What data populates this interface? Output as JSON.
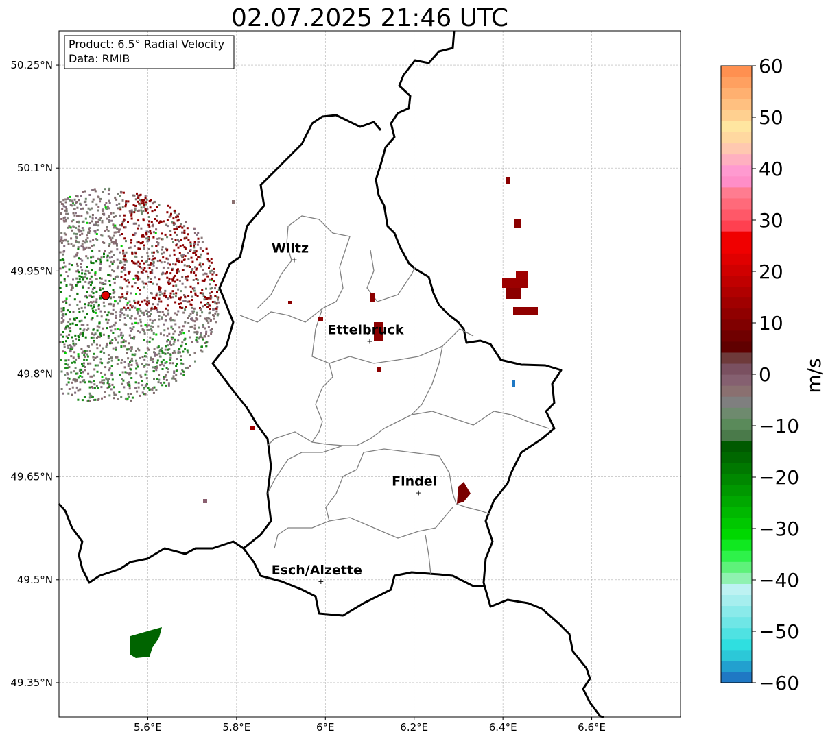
{
  "title": "02.07.2025 21:46 UTC",
  "info_box": {
    "product": "Product: 6.5° Radial Velocity",
    "data": "Data: RMIB"
  },
  "axes": {
    "lon_range": [
      5.4,
      6.8
    ],
    "lat_range": [
      49.3,
      50.3
    ],
    "x_ticks": [
      {
        "value": 5.6,
        "label": "5.6°E"
      },
      {
        "value": 5.8,
        "label": "5.8°E"
      },
      {
        "value": 6.0,
        "label": "6°E"
      },
      {
        "value": 6.2,
        "label": "6.2°E"
      },
      {
        "value": 6.4,
        "label": "6.4°E"
      },
      {
        "value": 6.6,
        "label": "6.6°E"
      }
    ],
    "y_ticks": [
      {
        "value": 50.25,
        "label": "50.25°N"
      },
      {
        "value": 50.1,
        "label": "50.1°N"
      },
      {
        "value": 49.95,
        "label": "49.95°N"
      },
      {
        "value": 49.8,
        "label": "49.8°N"
      },
      {
        "value": 49.65,
        "label": "49.65°N"
      },
      {
        "value": 49.5,
        "label": "49.5°N"
      },
      {
        "value": 49.35,
        "label": "49.35°N"
      }
    ],
    "grid": true
  },
  "cities": [
    {
      "name": "Wiltz",
      "lon": 5.93,
      "lat": 49.967
    },
    {
      "name": "Ettelbruck",
      "lon": 6.1,
      "lat": 49.848
    },
    {
      "name": "Findel",
      "lon": 6.21,
      "lat": 49.627
    },
    {
      "name": "Esch/Alzette",
      "lon": 5.99,
      "lat": 49.498
    }
  ],
  "radar_site": {
    "lon": 5.505,
    "lat": 49.915
  },
  "colorbar": {
    "label": "m/s",
    "min": -60,
    "max": 60,
    "ticks": [
      {
        "value": 60,
        "label": "60"
      },
      {
        "value": 50,
        "label": "50"
      },
      {
        "value": 40,
        "label": "40"
      },
      {
        "value": 30,
        "label": "30"
      },
      {
        "value": 20,
        "label": "20"
      },
      {
        "value": 10,
        "label": "10"
      },
      {
        "value": 0,
        "label": "0"
      },
      {
        "value": -10,
        "label": "−10"
      },
      {
        "value": -20,
        "label": "−20"
      },
      {
        "value": -30,
        "label": "−30"
      },
      {
        "value": -40,
        "label": "−40"
      },
      {
        "value": -50,
        "label": "−50"
      },
      {
        "value": -60,
        "label": "−60"
      }
    ],
    "colors": [
      "#1f78c4",
      "#22a0cf",
      "#2cc8d8",
      "#2fdfe0",
      "#4fe2e2",
      "#6fe6e6",
      "#8aeaea",
      "#a6eeee",
      "#bdf2f2",
      "#8ff2b0",
      "#5ef27a",
      "#2ef24a",
      "#10e820",
      "#00d800",
      "#00c800",
      "#00b800",
      "#00a800",
      "#009800",
      "#008800",
      "#007800",
      "#006800",
      "#005a00",
      "#4a7a4a",
      "#5a8a5a",
      "#6e8a6e",
      "#7f7f7f",
      "#8a7070",
      "#856070",
      "#7a5060",
      "#6e3a3a",
      "#600000",
      "#700000",
      "#800000",
      "#900000",
      "#a00000",
      "#b00000",
      "#c00000",
      "#d00000",
      "#e00000",
      "#f00000",
      "#f00000",
      "#ff4050",
      "#ff5868",
      "#ff6a7a",
      "#ff7c90",
      "#ff8ec8",
      "#ff9ad0",
      "#ffb0c0",
      "#ffc8b0",
      "#ffd8a0",
      "#ffe6a0",
      "#ffd090",
      "#ffc080",
      "#ffb070",
      "#ffa060",
      "#ff9050"
    ]
  },
  "colors": {
    "border": "#000000",
    "admin": "#808080",
    "grid": "#b0b0b0",
    "radar_marker": "#e00000",
    "echo_dark_red": "#8b0000",
    "echo_green": "#006400",
    "echo_blue": "#1f78c4"
  }
}
